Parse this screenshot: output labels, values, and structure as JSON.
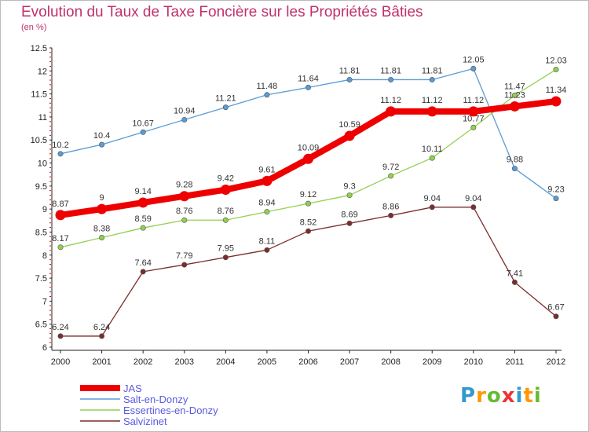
{
  "chart_data": {
    "type": "line",
    "title": "Evolution du Taux de Taxe Foncière sur les Propriétés Bâties",
    "unit_label": "(en %)",
    "xlabel": "",
    "ylabel": "",
    "categories": [
      "2000",
      "2001",
      "2002",
      "2003",
      "2004",
      "2005",
      "2006",
      "2007",
      "2008",
      "2009",
      "2010",
      "2011",
      "2012"
    ],
    "ylim": [
      6,
      12.5
    ],
    "yticks": [
      6,
      6.5,
      7,
      7.5,
      8,
      8.5,
      9,
      9.5,
      10,
      10.5,
      11,
      11.5,
      12,
      12.5
    ],
    "grid": false,
    "legend_position": "bottom-left",
    "series": [
      {
        "name": "JAS",
        "color": "#ee0000",
        "values": [
          8.87,
          9,
          9.14,
          9.28,
          9.42,
          9.61,
          10.09,
          10.59,
          11.12,
          11.12,
          11.12,
          11.23,
          11.34
        ],
        "labels": [
          "8.87",
          "9",
          "9.14",
          "9.28",
          "9.42",
          "9.61",
          "10.09",
          "10.59",
          "11.12",
          "11.12",
          "11.12",
          "11.23",
          "11.34"
        ]
      },
      {
        "name": "Salt-en-Donzy",
        "color": "#5b9bd5",
        "values": [
          10.2,
          10.4,
          10.67,
          10.94,
          11.21,
          11.48,
          11.64,
          11.81,
          11.81,
          11.81,
          12.05,
          9.88,
          9.23
        ],
        "labels": [
          "10.2",
          "10.4",
          "10.67",
          "10.94",
          "11.21",
          "11.48",
          "11.64",
          "11.81",
          "11.81",
          "11.81",
          "12.05",
          "9.88",
          "9.23"
        ]
      },
      {
        "name": "Essertines-en-Donzy",
        "color": "#92d050",
        "values": [
          8.17,
          8.38,
          8.59,
          8.76,
          8.76,
          8.94,
          9.12,
          9.3,
          9.72,
          10.11,
          10.77,
          11.47,
          12.03
        ],
        "labels": [
          "8.17",
          "8.38",
          "8.59",
          "8.76",
          "8.76",
          "8.94",
          "9.12",
          "9.3",
          "9.72",
          "10.11",
          "10.77",
          "11.47",
          "12.03"
        ]
      },
      {
        "name": "Salvizinet",
        "color": "#7b2c2c",
        "values": [
          6.24,
          6.24,
          7.64,
          7.79,
          7.95,
          8.11,
          8.52,
          8.69,
          8.86,
          9.04,
          9.04,
          7.41,
          6.67
        ],
        "labels": [
          "6.24",
          "6.24",
          "7.64",
          "7.79",
          "7.95",
          "8.11",
          "8.52",
          "8.69",
          "8.86",
          "9.04",
          "9.04",
          "7.41",
          "6.67"
        ]
      }
    ]
  },
  "logo": {
    "letters": [
      "P",
      "r",
      "o",
      "x",
      "i",
      "t",
      "i"
    ],
    "colors": [
      "#3399cc",
      "#ff9900",
      "#66bb33",
      "#ee3333",
      "#3399cc",
      "#ff9900",
      "#66bb33"
    ]
  }
}
